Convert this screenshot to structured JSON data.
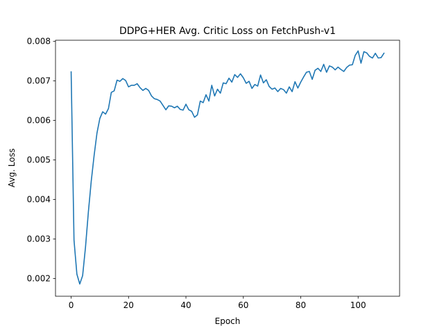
{
  "chart_data": {
    "type": "line",
    "title": "DDPG+HER Avg. Critic Loss on FetchPush-v1",
    "xlabel": "Epoch",
    "ylabel": "Avg. Loss",
    "xlim": [
      -5.45,
      114.45
    ],
    "ylim": [
      0.00155,
      0.00803
    ],
    "xticks": [
      0,
      20,
      40,
      60,
      80,
      100
    ],
    "yticks": [
      0.002,
      0.003,
      0.004,
      0.005,
      0.006,
      0.007,
      0.008
    ],
    "xtick_labels": [
      "0",
      "20",
      "40",
      "60",
      "80",
      "100"
    ],
    "ytick_labels": [
      "0.002",
      "0.003",
      "0.004",
      "0.005",
      "0.006",
      "0.007",
      "0.008"
    ],
    "grid": false,
    "color": "#1f77b4",
    "series": [
      {
        "x": [
          0,
          1,
          2,
          3,
          4,
          5,
          6,
          7,
          8,
          9,
          10,
          11,
          12,
          13,
          14,
          15,
          16,
          17,
          18,
          19,
          20,
          21,
          22,
          23,
          24,
          25,
          26,
          27,
          28,
          29,
          30,
          31,
          32,
          33,
          34,
          35,
          36,
          37,
          38,
          39,
          40,
          41,
          42,
          43,
          44,
          45,
          46,
          47,
          48,
          49,
          50,
          51,
          52,
          53,
          54,
          55,
          56,
          57,
          58,
          59,
          60,
          61,
          62,
          63,
          64,
          65,
          66,
          67,
          68,
          69,
          70,
          71,
          72,
          73,
          74,
          75,
          76,
          77,
          78,
          79,
          80,
          81,
          82,
          83,
          84,
          85,
          86,
          87,
          88,
          89,
          90,
          91,
          92,
          93,
          94,
          95,
          96,
          97,
          98,
          99,
          100,
          101,
          102,
          103,
          104,
          105,
          106,
          107,
          108,
          109
        ],
        "values": [
          0.00723,
          0.00297,
          0.00211,
          0.00186,
          0.00207,
          0.00279,
          0.00368,
          0.00446,
          0.00511,
          0.00568,
          0.00605,
          0.00622,
          0.00616,
          0.0063,
          0.00671,
          0.00675,
          0.00702,
          0.00699,
          0.00706,
          0.00701,
          0.00685,
          0.00689,
          0.00689,
          0.00693,
          0.00683,
          0.00676,
          0.00681,
          0.00676,
          0.00662,
          0.00655,
          0.00653,
          0.00649,
          0.00638,
          0.00627,
          0.00637,
          0.00636,
          0.00632,
          0.00636,
          0.00628,
          0.00626,
          0.00641,
          0.00627,
          0.00623,
          0.00608,
          0.00614,
          0.00649,
          0.00645,
          0.00665,
          0.00649,
          0.00689,
          0.00662,
          0.00679,
          0.00669,
          0.00695,
          0.00693,
          0.00707,
          0.00697,
          0.00716,
          0.00709,
          0.00718,
          0.00708,
          0.00694,
          0.00699,
          0.00681,
          0.00691,
          0.00687,
          0.00715,
          0.00695,
          0.00703,
          0.00686,
          0.00679,
          0.00682,
          0.00673,
          0.00681,
          0.00678,
          0.00669,
          0.00685,
          0.00673,
          0.00698,
          0.00682,
          0.00697,
          0.0071,
          0.00722,
          0.00724,
          0.00704,
          0.00727,
          0.00732,
          0.00724,
          0.00742,
          0.00722,
          0.00738,
          0.00735,
          0.00728,
          0.00735,
          0.00729,
          0.00724,
          0.00734,
          0.0074,
          0.00741,
          0.00765,
          0.00776,
          0.00745,
          0.00774,
          0.00771,
          0.00762,
          0.00758,
          0.0077,
          0.00758,
          0.00759,
          0.0077
        ]
      }
    ]
  }
}
